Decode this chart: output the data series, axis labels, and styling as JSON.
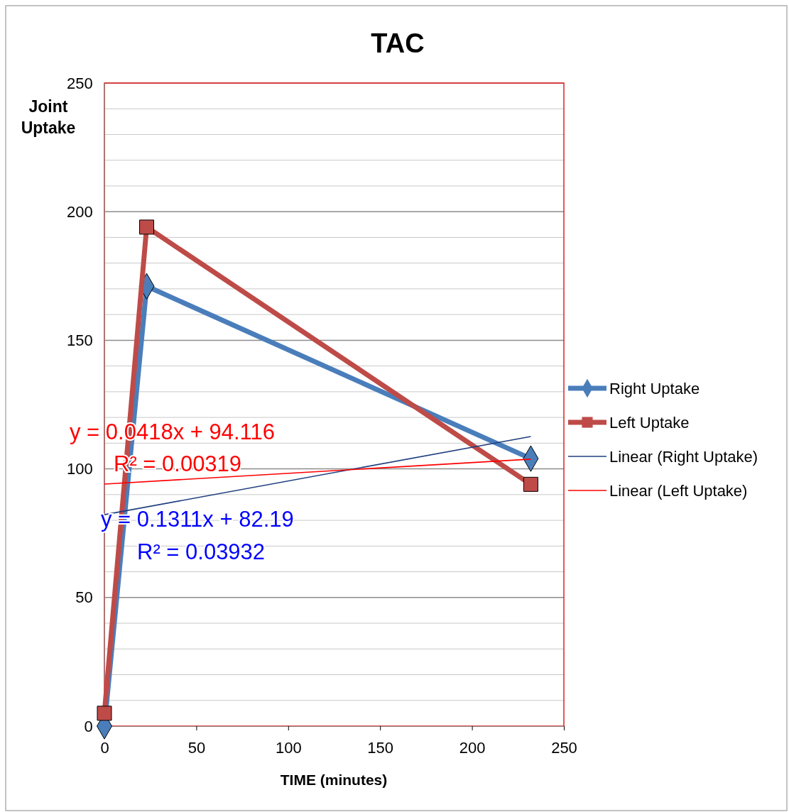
{
  "chart_data": {
    "type": "line",
    "title": "TAC",
    "xlabel": "TIME (minutes)",
    "ylabel": "Joint Uptake",
    "xlim": [
      0,
      250
    ],
    "xticks": [
      0,
      50,
      100,
      150,
      200,
      250
    ],
    "ylim": [
      0,
      250
    ],
    "yticks": [
      0,
      {
        "value": 10,
        "label": null
      },
      {
        "value": 20,
        "label": null
      },
      {
        "value": 30,
        "label": null
      },
      {
        "value": 40,
        "label": null
      },
      50,
      {
        "value": 60,
        "label": null
      },
      {
        "value": 70,
        "label": null
      },
      {
        "value": 80,
        "label": null
      },
      {
        "value": 90,
        "label": null
      },
      100,
      {
        "value": 110,
        "label": null
      },
      {
        "value": 120,
        "label": null
      },
      {
        "value": 130,
        "label": null
      },
      {
        "value": 140,
        "label": null
      },
      150,
      {
        "value": 160,
        "label": null
      },
      {
        "value": 170,
        "label": null
      },
      {
        "value": 180,
        "label": null
      },
      {
        "value": 190,
        "label": null
      },
      200,
      {
        "value": 210,
        "label": null
      },
      {
        "value": 220,
        "label": null
      },
      {
        "value": 230,
        "label": null
      },
      {
        "value": 240,
        "label": null
      },
      250
    ],
    "grid": "y",
    "legend": "right",
    "series": [
      {
        "name": "Right Uptake",
        "color": "#4a7ebb",
        "x": [
          0,
          23,
          232
        ],
        "values": [
          0,
          171,
          104
        ],
        "marker": "diamond"
      },
      {
        "name": "Left Uptake",
        "color": "#be4b48",
        "x": [
          0,
          23,
          232
        ],
        "values": [
          5,
          194,
          94
        ],
        "marker": "square"
      },
      {
        "name": "Linear (Right Uptake)",
        "color": "#1f3f7f",
        "x": [
          0,
          232
        ],
        "values": [
          82.2,
          112.6
        ],
        "marker": "none"
      },
      {
        "name": "Linear (Left Uptake)",
        "color": "#ff0000",
        "x": [
          0,
          232
        ],
        "values": [
          94.1,
          103.8
        ],
        "marker": "none"
      }
    ],
    "annotations": [
      "y = 0.0418x + 94.116",
      "R² = 0.00319",
      "y = 0.1311x + 82.19",
      "R² = 0.03932"
    ]
  }
}
